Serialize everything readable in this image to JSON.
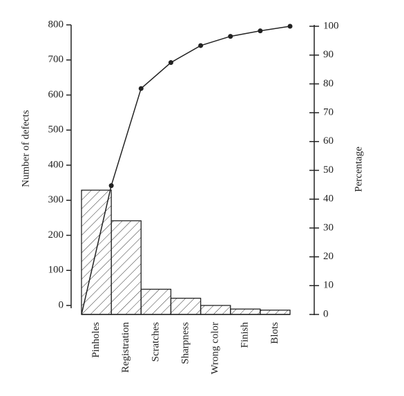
{
  "chart_data": {
    "type": "pareto",
    "categories": [
      "Pinholes",
      "Registration",
      "Scratches",
      "Sharpness",
      "Wrong color",
      "Finish",
      "Blots"
    ],
    "series": [
      {
        "name": "Number of defects",
        "type": "bar",
        "color": "#222222",
        "values": [
          345,
          260,
          70,
          45,
          25,
          15,
          12
        ]
      },
      {
        "name": "Percentage",
        "type": "line",
        "axis": "y2",
        "color": "#222222",
        "values": [
          44.7,
          78.4,
          87.4,
          93.3,
          96.5,
          98.4,
          100
        ]
      }
    ],
    "ylabel": "Number of defects",
    "y2label": "Percentage",
    "ylim": [
      0,
      800
    ],
    "yticks": [
      0,
      100,
      200,
      300,
      400,
      500,
      600,
      700,
      800
    ],
    "y2lim": [
      0,
      100
    ],
    "y2ticks": [
      0,
      10,
      20,
      30,
      40,
      50,
      60,
      70,
      80,
      90,
      100
    ]
  }
}
